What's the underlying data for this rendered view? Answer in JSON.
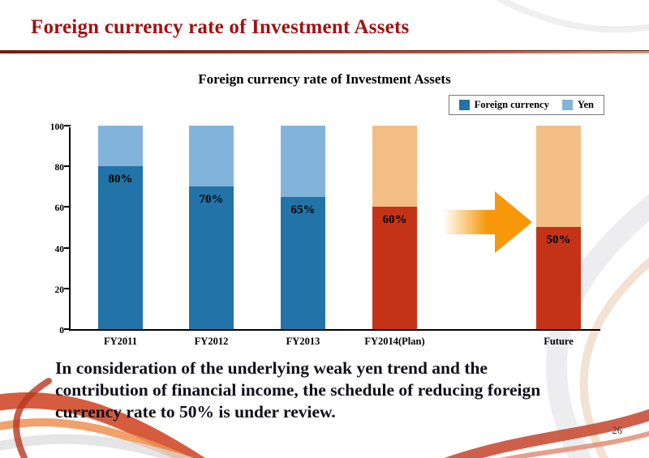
{
  "slide": {
    "title": "Foreign currency rate of Investment Assets",
    "body_lines": [
      "In consideration of the underlying weak yen trend and the",
      "contribution of financial income, the schedule of reducing foreign",
      "currency rate to 50% is under review."
    ],
    "page_number": "26",
    "title_color": "#A01313"
  },
  "chart_data": {
    "type": "bar",
    "stacked": true,
    "title": "Foreign currency rate of Investment Assets",
    "categories": [
      "FY2011",
      "FY2012",
      "FY2013",
      "FY2014(Plan)",
      "Future"
    ],
    "series": [
      {
        "name": "Foreign currency",
        "values": [
          80,
          70,
          65,
          60,
          50
        ]
      },
      {
        "name": "Yen",
        "values": [
          20,
          30,
          35,
          40,
          50
        ]
      }
    ],
    "data_labels": [
      "80%",
      "70%",
      "65%",
      "60%",
      "50%"
    ],
    "ylim": [
      0,
      100
    ],
    "yticks": [
      0,
      20,
      40,
      60,
      80,
      100
    ],
    "legend_position": "top-right",
    "legend_colors": [
      "#2273A7",
      "#82B4DB"
    ],
    "bar_colors": [
      {
        "bottom": "#2273A7",
        "top": "#82B4DB"
      },
      {
        "bottom": "#2273A7",
        "top": "#82B4DB"
      },
      {
        "bottom": "#2273A7",
        "top": "#82B4DB"
      },
      {
        "bottom": "#C53317",
        "top": "#F2BE85"
      },
      {
        "bottom": "#C53317",
        "top": "#F2BE85"
      }
    ],
    "arrow_color": "#F79709",
    "grid": false
  }
}
